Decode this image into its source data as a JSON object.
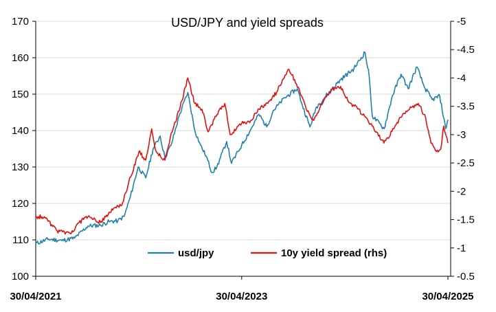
{
  "chart_data": {
    "type": "line",
    "title": "USD/JPY and yield spreads",
    "x_tick_labels": [
      "30/04/2021",
      "30/04/2023",
      "30/04/2025"
    ],
    "x_range": [
      "2021-04-30",
      "2025-04-30"
    ],
    "y_left": {
      "min": 100,
      "max": 170,
      "step": 10
    },
    "y_right": {
      "min": -0.5,
      "max": -5,
      "step": -0.5,
      "inverted": true
    },
    "y_left_ticks": [
      "100",
      "110",
      "120",
      "130",
      "140",
      "150",
      "160",
      "170"
    ],
    "y_right_ticks": [
      "-0.5",
      "-1",
      "-1.5",
      "-2",
      "-2.5",
      "-3",
      "-3.5",
      "-4",
      "-4.5",
      "-5"
    ],
    "grid": "horizontal",
    "legend_position": "bottom-center",
    "series": [
      {
        "name": "usd/jpy",
        "axis": "left",
        "color": "#1f7fa8",
        "points": [
          [
            "2021-04-30",
            109.0
          ],
          [
            "2021-06-15",
            110.2
          ],
          [
            "2021-08-01",
            109.8
          ],
          [
            "2021-09-15",
            110.5
          ],
          [
            "2021-11-01",
            113.8
          ],
          [
            "2021-12-15",
            114.0
          ],
          [
            "2022-01-15",
            115.0
          ],
          [
            "2022-02-15",
            115.2
          ],
          [
            "2022-03-10",
            116.5
          ],
          [
            "2022-04-01",
            122.0
          ],
          [
            "2022-04-28",
            130.0
          ],
          [
            "2022-05-25",
            127.0
          ],
          [
            "2022-06-20",
            135.0
          ],
          [
            "2022-07-15",
            138.5
          ],
          [
            "2022-08-01",
            132.5
          ],
          [
            "2022-08-25",
            136.5
          ],
          [
            "2022-09-20",
            144.0
          ],
          [
            "2022-10-21",
            150.5
          ],
          [
            "2022-11-15",
            140.0
          ],
          [
            "2022-12-05",
            136.0
          ],
          [
            "2022-12-25",
            133.0
          ],
          [
            "2023-01-15",
            128.5
          ],
          [
            "2023-02-01",
            130.0
          ],
          [
            "2023-03-08",
            137.0
          ],
          [
            "2023-03-25",
            131.0
          ],
          [
            "2023-04-30",
            136.0
          ],
          [
            "2023-05-30",
            140.0
          ],
          [
            "2023-06-30",
            144.5
          ],
          [
            "2023-07-28",
            141.0
          ],
          [
            "2023-08-20",
            145.5
          ],
          [
            "2023-09-30",
            149.0
          ],
          [
            "2023-11-13",
            151.5
          ],
          [
            "2023-12-01",
            147.0
          ],
          [
            "2023-12-28",
            141.0
          ],
          [
            "2024-01-20",
            146.5
          ],
          [
            "2024-02-28",
            150.0
          ],
          [
            "2024-04-15",
            154.0
          ],
          [
            "2024-06-01",
            157.0
          ],
          [
            "2024-07-10",
            161.5
          ],
          [
            "2024-07-25",
            155.0
          ],
          [
            "2024-08-05",
            144.0
          ],
          [
            "2024-09-16",
            140.5
          ],
          [
            "2024-10-15",
            149.5
          ],
          [
            "2024-11-15",
            155.5
          ],
          [
            "2024-12-10",
            151.5
          ],
          [
            "2025-01-10",
            157.5
          ],
          [
            "2025-02-05",
            152.0
          ],
          [
            "2025-03-05",
            148.5
          ],
          [
            "2025-04-01",
            149.5
          ],
          [
            "2025-04-22",
            140.5
          ],
          [
            "2025-04-30",
            143.0
          ]
        ]
      },
      {
        "name": "10y yield spread (rhs)",
        "axis": "right",
        "color": "#e01010",
        "points": [
          [
            "2021-04-30",
            -1.55
          ],
          [
            "2021-05-31",
            -1.55
          ],
          [
            "2021-07-15",
            -1.3
          ],
          [
            "2021-08-31",
            -1.25
          ],
          [
            "2021-10-01",
            -1.45
          ],
          [
            "2021-11-01",
            -1.55
          ],
          [
            "2021-12-15",
            -1.45
          ],
          [
            "2022-01-31",
            -1.7
          ],
          [
            "2022-03-01",
            -1.75
          ],
          [
            "2022-04-01",
            -2.25
          ],
          [
            "2022-05-01",
            -2.7
          ],
          [
            "2022-05-25",
            -2.55
          ],
          [
            "2022-06-15",
            -3.1
          ],
          [
            "2022-07-01",
            -2.7
          ],
          [
            "2022-08-01",
            -2.55
          ],
          [
            "2022-08-20",
            -2.95
          ],
          [
            "2022-09-30",
            -3.6
          ],
          [
            "2022-10-21",
            -4.0
          ],
          [
            "2022-11-15",
            -3.55
          ],
          [
            "2022-12-10",
            -3.45
          ],
          [
            "2023-01-01",
            -3.05
          ],
          [
            "2023-02-01",
            -3.35
          ],
          [
            "2023-03-01",
            -3.55
          ],
          [
            "2023-03-20",
            -3.0
          ],
          [
            "2023-04-30",
            -3.2
          ],
          [
            "2023-06-01",
            -3.25
          ],
          [
            "2023-07-01",
            -3.45
          ],
          [
            "2023-08-01",
            -3.55
          ],
          [
            "2023-09-01",
            -3.75
          ],
          [
            "2023-10-01",
            -4.05
          ],
          [
            "2023-10-15",
            -4.15
          ],
          [
            "2023-11-20",
            -3.8
          ],
          [
            "2023-12-15",
            -3.45
          ],
          [
            "2024-01-10",
            -3.25
          ],
          [
            "2024-02-15",
            -3.6
          ],
          [
            "2024-03-15",
            -3.8
          ],
          [
            "2024-04-15",
            -3.85
          ],
          [
            "2024-05-10",
            -3.6
          ],
          [
            "2024-06-15",
            -3.45
          ],
          [
            "2024-07-15",
            -3.3
          ],
          [
            "2024-08-05",
            -3.15
          ],
          [
            "2024-09-15",
            -2.85
          ],
          [
            "2024-10-20",
            -3.1
          ],
          [
            "2024-11-20",
            -3.35
          ],
          [
            "2024-12-15",
            -3.45
          ],
          [
            "2025-01-15",
            -3.55
          ],
          [
            "2025-02-10",
            -3.3
          ],
          [
            "2025-03-01",
            -2.85
          ],
          [
            "2025-03-20",
            -2.7
          ],
          [
            "2025-04-05",
            -2.75
          ],
          [
            "2025-04-15",
            -3.15
          ],
          [
            "2025-04-30",
            -2.85
          ]
        ]
      }
    ]
  }
}
